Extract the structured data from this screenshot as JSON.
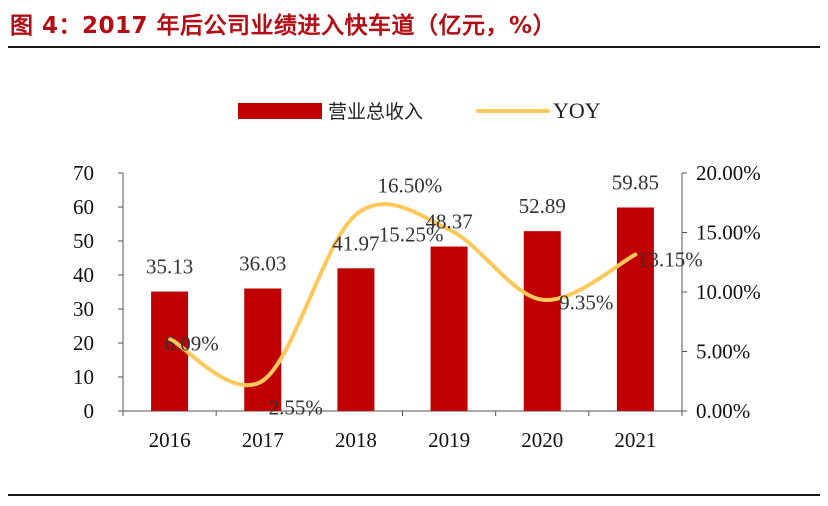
{
  "figure": {
    "title": "图 4：2017 年后公司业绩进入快车道（亿元，%）"
  },
  "colors": {
    "bar": "#c00000",
    "line": "#ffc85a",
    "title": "#b30d16"
  },
  "chart_data": {
    "type": "bar",
    "categories": [
      "2016",
      "2017",
      "2018",
      "2019",
      "2020",
      "2021"
    ],
    "series": [
      {
        "name": "营业总收入",
        "type": "bar",
        "axis": "left",
        "values": [
          35.13,
          36.03,
          41.97,
          48.37,
          52.89,
          59.85
        ],
        "labels": [
          "35.13",
          "36.03",
          "41.97",
          "48.37",
          "52.89",
          "59.85"
        ]
      },
      {
        "name": "YOY",
        "type": "line",
        "axis": "right",
        "values": [
          6.09,
          2.55,
          16.5,
          15.25,
          9.35,
          13.15
        ],
        "labels": [
          "6.09%",
          "2.55%",
          "16.50%",
          "15.25%",
          "9.35%",
          "13.15%"
        ]
      }
    ],
    "y_left": {
      "range": [
        0,
        70
      ],
      "ticks": [
        "0",
        "10",
        "20",
        "30",
        "40",
        "50",
        "60",
        "70"
      ]
    },
    "y_right": {
      "range": [
        0,
        20
      ],
      "ticks": [
        "0.00%",
        "5.00%",
        "10.00%",
        "15.00%",
        "20.00%"
      ]
    },
    "legend": {
      "position": "top-center",
      "entries": [
        "营业总收入",
        "YOY"
      ]
    },
    "grid": false
  }
}
